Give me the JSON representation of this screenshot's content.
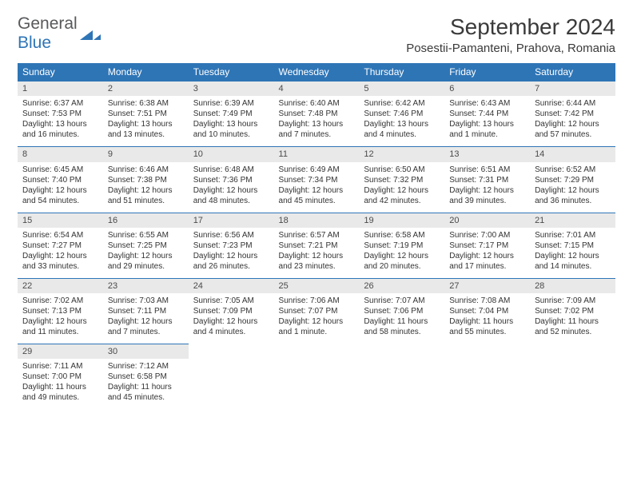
{
  "logo": {
    "word1": "General",
    "word2": "Blue"
  },
  "title": "September 2024",
  "location": "Posestii-Pamanteni, Prahova, Romania",
  "colors": {
    "header_bg": "#2e75b6",
    "header_fg": "#ffffff",
    "daynum_bg": "#e9e9e9",
    "border_top": "#2e75b6",
    "text": "#333333"
  },
  "weekdays": [
    "Sunday",
    "Monday",
    "Tuesday",
    "Wednesday",
    "Thursday",
    "Friday",
    "Saturday"
  ],
  "weeks": [
    [
      {
        "n": "1",
        "sr": "Sunrise: 6:37 AM",
        "ss": "Sunset: 7:53 PM",
        "dl1": "Daylight: 13 hours",
        "dl2": "and 16 minutes."
      },
      {
        "n": "2",
        "sr": "Sunrise: 6:38 AM",
        "ss": "Sunset: 7:51 PM",
        "dl1": "Daylight: 13 hours",
        "dl2": "and 13 minutes."
      },
      {
        "n": "3",
        "sr": "Sunrise: 6:39 AM",
        "ss": "Sunset: 7:49 PM",
        "dl1": "Daylight: 13 hours",
        "dl2": "and 10 minutes."
      },
      {
        "n": "4",
        "sr": "Sunrise: 6:40 AM",
        "ss": "Sunset: 7:48 PM",
        "dl1": "Daylight: 13 hours",
        "dl2": "and 7 minutes."
      },
      {
        "n": "5",
        "sr": "Sunrise: 6:42 AM",
        "ss": "Sunset: 7:46 PM",
        "dl1": "Daylight: 13 hours",
        "dl2": "and 4 minutes."
      },
      {
        "n": "6",
        "sr": "Sunrise: 6:43 AM",
        "ss": "Sunset: 7:44 PM",
        "dl1": "Daylight: 13 hours",
        "dl2": "and 1 minute."
      },
      {
        "n": "7",
        "sr": "Sunrise: 6:44 AM",
        "ss": "Sunset: 7:42 PM",
        "dl1": "Daylight: 12 hours",
        "dl2": "and 57 minutes."
      }
    ],
    [
      {
        "n": "8",
        "sr": "Sunrise: 6:45 AM",
        "ss": "Sunset: 7:40 PM",
        "dl1": "Daylight: 12 hours",
        "dl2": "and 54 minutes."
      },
      {
        "n": "9",
        "sr": "Sunrise: 6:46 AM",
        "ss": "Sunset: 7:38 PM",
        "dl1": "Daylight: 12 hours",
        "dl2": "and 51 minutes."
      },
      {
        "n": "10",
        "sr": "Sunrise: 6:48 AM",
        "ss": "Sunset: 7:36 PM",
        "dl1": "Daylight: 12 hours",
        "dl2": "and 48 minutes."
      },
      {
        "n": "11",
        "sr": "Sunrise: 6:49 AM",
        "ss": "Sunset: 7:34 PM",
        "dl1": "Daylight: 12 hours",
        "dl2": "and 45 minutes."
      },
      {
        "n": "12",
        "sr": "Sunrise: 6:50 AM",
        "ss": "Sunset: 7:32 PM",
        "dl1": "Daylight: 12 hours",
        "dl2": "and 42 minutes."
      },
      {
        "n": "13",
        "sr": "Sunrise: 6:51 AM",
        "ss": "Sunset: 7:31 PM",
        "dl1": "Daylight: 12 hours",
        "dl2": "and 39 minutes."
      },
      {
        "n": "14",
        "sr": "Sunrise: 6:52 AM",
        "ss": "Sunset: 7:29 PM",
        "dl1": "Daylight: 12 hours",
        "dl2": "and 36 minutes."
      }
    ],
    [
      {
        "n": "15",
        "sr": "Sunrise: 6:54 AM",
        "ss": "Sunset: 7:27 PM",
        "dl1": "Daylight: 12 hours",
        "dl2": "and 33 minutes."
      },
      {
        "n": "16",
        "sr": "Sunrise: 6:55 AM",
        "ss": "Sunset: 7:25 PM",
        "dl1": "Daylight: 12 hours",
        "dl2": "and 29 minutes."
      },
      {
        "n": "17",
        "sr": "Sunrise: 6:56 AM",
        "ss": "Sunset: 7:23 PM",
        "dl1": "Daylight: 12 hours",
        "dl2": "and 26 minutes."
      },
      {
        "n": "18",
        "sr": "Sunrise: 6:57 AM",
        "ss": "Sunset: 7:21 PM",
        "dl1": "Daylight: 12 hours",
        "dl2": "and 23 minutes."
      },
      {
        "n": "19",
        "sr": "Sunrise: 6:58 AM",
        "ss": "Sunset: 7:19 PM",
        "dl1": "Daylight: 12 hours",
        "dl2": "and 20 minutes."
      },
      {
        "n": "20",
        "sr": "Sunrise: 7:00 AM",
        "ss": "Sunset: 7:17 PM",
        "dl1": "Daylight: 12 hours",
        "dl2": "and 17 minutes."
      },
      {
        "n": "21",
        "sr": "Sunrise: 7:01 AM",
        "ss": "Sunset: 7:15 PM",
        "dl1": "Daylight: 12 hours",
        "dl2": "and 14 minutes."
      }
    ],
    [
      {
        "n": "22",
        "sr": "Sunrise: 7:02 AM",
        "ss": "Sunset: 7:13 PM",
        "dl1": "Daylight: 12 hours",
        "dl2": "and 11 minutes."
      },
      {
        "n": "23",
        "sr": "Sunrise: 7:03 AM",
        "ss": "Sunset: 7:11 PM",
        "dl1": "Daylight: 12 hours",
        "dl2": "and 7 minutes."
      },
      {
        "n": "24",
        "sr": "Sunrise: 7:05 AM",
        "ss": "Sunset: 7:09 PM",
        "dl1": "Daylight: 12 hours",
        "dl2": "and 4 minutes."
      },
      {
        "n": "25",
        "sr": "Sunrise: 7:06 AM",
        "ss": "Sunset: 7:07 PM",
        "dl1": "Daylight: 12 hours",
        "dl2": "and 1 minute."
      },
      {
        "n": "26",
        "sr": "Sunrise: 7:07 AM",
        "ss": "Sunset: 7:06 PM",
        "dl1": "Daylight: 11 hours",
        "dl2": "and 58 minutes."
      },
      {
        "n": "27",
        "sr": "Sunrise: 7:08 AM",
        "ss": "Sunset: 7:04 PM",
        "dl1": "Daylight: 11 hours",
        "dl2": "and 55 minutes."
      },
      {
        "n": "28",
        "sr": "Sunrise: 7:09 AM",
        "ss": "Sunset: 7:02 PM",
        "dl1": "Daylight: 11 hours",
        "dl2": "and 52 minutes."
      }
    ],
    [
      {
        "n": "29",
        "sr": "Sunrise: 7:11 AM",
        "ss": "Sunset: 7:00 PM",
        "dl1": "Daylight: 11 hours",
        "dl2": "and 49 minutes."
      },
      {
        "n": "30",
        "sr": "Sunrise: 7:12 AM",
        "ss": "Sunset: 6:58 PM",
        "dl1": "Daylight: 11 hours",
        "dl2": "and 45 minutes."
      },
      null,
      null,
      null,
      null,
      null
    ]
  ]
}
